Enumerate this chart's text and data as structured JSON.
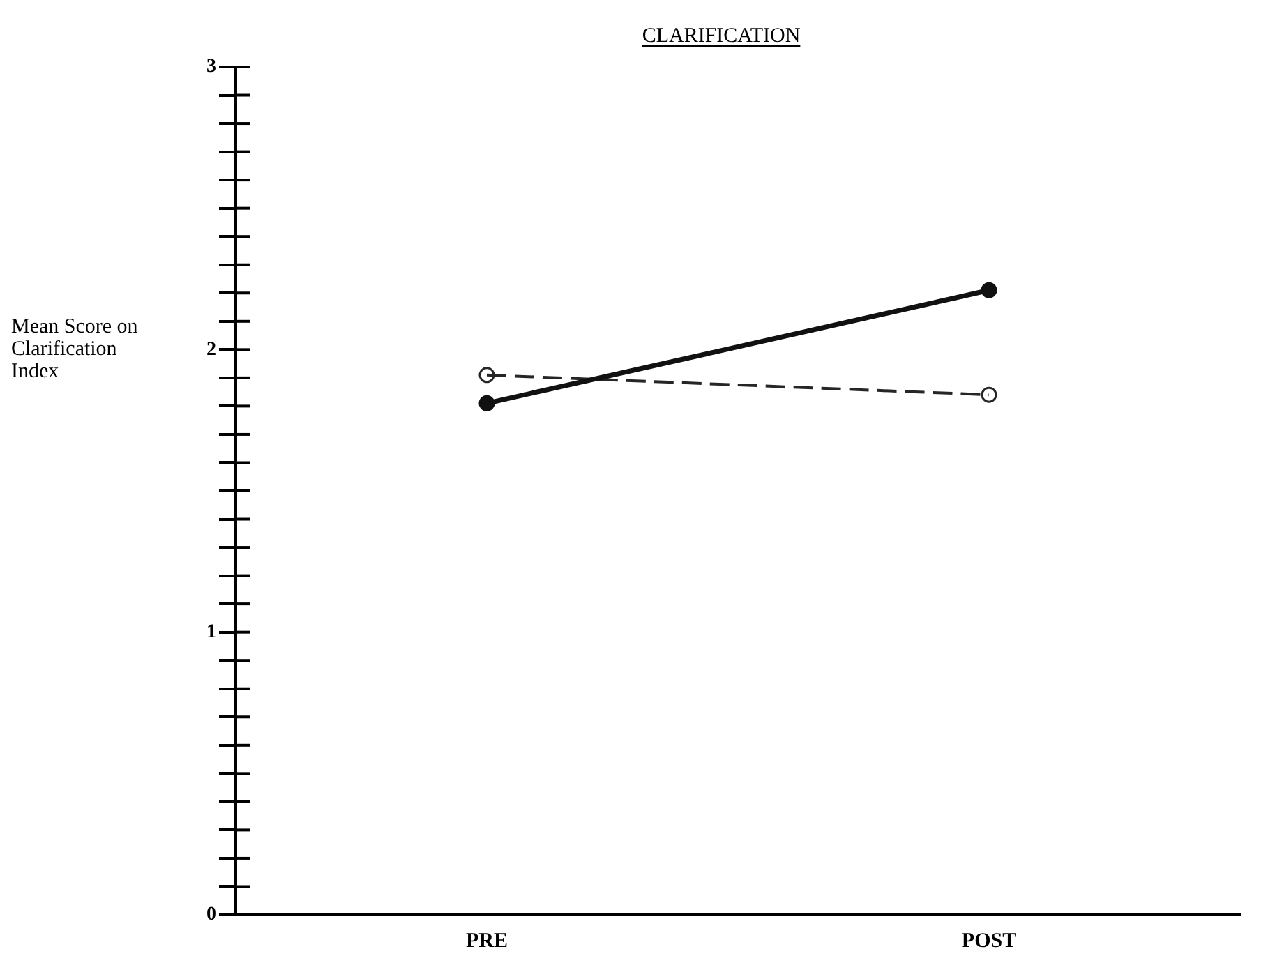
{
  "chart_data": {
    "type": "line",
    "title": "CLARIFICATION",
    "ylabel": "Mean Score on Clarification Index",
    "categories": [
      "PRE",
      "POST"
    ],
    "series": [
      {
        "color": "#111111",
        "values": [
          1.81,
          2.21
        ],
        "line_style": "solid"
      },
      {
        "color": "#262626",
        "values": [
          1.91,
          1.84
        ],
        "line_style": "dashed"
      }
    ],
    "ylim": [
      0,
      3
    ],
    "yticks": [
      0,
      {
        "value": 0.1,
        "label": null
      },
      {
        "value": 0.2,
        "label": null
      },
      {
        "value": 0.3,
        "label": null
      },
      {
        "value": 0.4,
        "label": null
      },
      {
        "value": 0.5,
        "label": null
      },
      {
        "value": 0.6,
        "label": null
      },
      {
        "value": 0.7,
        "label": null
      },
      {
        "value": 0.8,
        "label": null
      },
      {
        "value": 0.9,
        "label": null
      },
      1,
      {
        "value": 1.1,
        "label": null
      },
      {
        "value": 1.2,
        "label": null
      },
      {
        "value": 1.3,
        "label": null
      },
      {
        "value": 1.4,
        "label": null
      },
      {
        "value": 1.5,
        "label": null
      },
      {
        "value": 1.6,
        "label": null
      },
      {
        "value": 1.7,
        "label": null
      },
      {
        "value": 1.8,
        "label": null
      },
      {
        "value": 1.9,
        "label": null
      },
      2,
      {
        "value": 2.1,
        "label": null
      },
      {
        "value": 2.2,
        "label": null
      },
      {
        "value": 2.3,
        "label": null
      },
      {
        "value": 2.4,
        "label": null
      },
      {
        "value": 2.5,
        "label": null
      },
      {
        "value": 2.6,
        "label": null
      },
      {
        "value": 2.7,
        "label": null
      },
      {
        "value": 2.8,
        "label": null
      },
      {
        "value": 2.9,
        "label": null
      },
      3
    ],
    "grid": false,
    "legend": false,
    "marker": "circle"
  }
}
